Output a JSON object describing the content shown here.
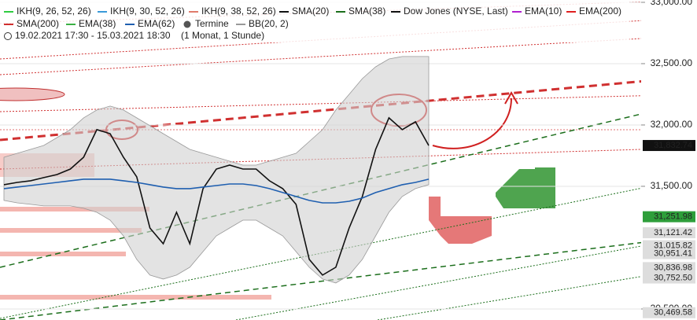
{
  "chart_data": {
    "type": "line",
    "period": "19.02.2021 17:30 - 15.03.2021 18:30",
    "interval": "(1 Monat, 1 Stunde)",
    "ylim": [
      30410,
      33019
    ],
    "yticks": [
      {
        "value": 33000,
        "label": "33,000.00"
      },
      {
        "value": 32500,
        "label": "32,500.00"
      },
      {
        "value": 32000,
        "label": "32,000.00"
      },
      {
        "value": 31500,
        "label": "31,500.00"
      },
      {
        "value": 30500,
        "label": "30,500.00"
      }
    ],
    "markers": [
      {
        "value": 31832.74,
        "label": "31,832.74",
        "color": "#111111"
      },
      {
        "value": 31251.98,
        "label": "31,251.98",
        "color": "#2e9e3a"
      },
      {
        "value": 31121.42,
        "label": "31,121.42",
        "color": "#dddddd"
      },
      {
        "value": 31015.82,
        "label": "31,015.82",
        "color": "#dddddd"
      },
      {
        "value": 30951.41,
        "label": "30,951.41",
        "color": "#dddddd"
      },
      {
        "value": 30836.98,
        "label": "30,836.98",
        "color": "#dddddd"
      },
      {
        "value": 30752.5,
        "label": "30,752.50",
        "color": "#dddddd"
      },
      {
        "value": 30469.58,
        "label": "30,469.58",
        "color": "#dddddd"
      }
    ],
    "series": [
      {
        "name": "IKH(9, 26, 52, 26)",
        "color": "#2ecc40"
      },
      {
        "name": "IKH(9, 30, 52, 26)",
        "color": "#3a9ad9"
      },
      {
        "name": "IKH(9, 38, 52, 26)",
        "color": "#e07a6a"
      },
      {
        "name": "SMA(20)",
        "color": "#111111"
      },
      {
        "name": "SMA(38)",
        "color": "#1b6e1b"
      },
      {
        "name": "Dow Jones (NYSE, Last)",
        "color": "#111111",
        "values": [
          31513,
          31532,
          31545,
          31571,
          31596,
          31641,
          31737,
          31962,
          31929,
          31737,
          31577,
          31160,
          31032,
          31288,
          31032,
          31481,
          31641,
          31673,
          31641,
          31641,
          31545,
          31481,
          31353,
          30904,
          30776,
          30840,
          31160,
          31417,
          31801,
          32058,
          31962,
          32026,
          31832.74
        ]
      },
      {
        "name": "EMA(10)",
        "color": "#b020d0"
      },
      {
        "name": "EMA(200)",
        "color": "#e02020"
      },
      {
        "name": "SMA(200)",
        "color": "#d03030"
      },
      {
        "name": "EMA(38)",
        "color": "#3cb043"
      },
      {
        "name": "EMA(62)",
        "color": "#1f5fb0",
        "values": [
          31481,
          31494,
          31506,
          31519,
          31532,
          31545,
          31558,
          31558,
          31558,
          31545,
          31532,
          31513,
          31494,
          31481,
          31481,
          31494,
          31506,
          31519,
          31519,
          31506,
          31481,
          31449,
          31417,
          31385,
          31365,
          31365,
          31378,
          31404,
          31449,
          31481,
          31513,
          31532,
          31558
        ]
      },
      {
        "name": "Termine"
      },
      {
        "name": "BB(20, 2)",
        "color": "#999999",
        "upper": [
          31737,
          31769,
          31801,
          31833,
          31897,
          31962,
          32058,
          32122,
          32154,
          32122,
          32058,
          31994,
          31929,
          31865,
          31801,
          31769,
          31737,
          31705,
          31673,
          31673,
          31705,
          31737,
          31769,
          31865,
          31962,
          32122,
          32250,
          32378,
          32474,
          32538,
          32558,
          32558,
          32558
        ],
        "lower": [
          31385,
          31365,
          31353,
          31340,
          31340,
          31340,
          31321,
          31288,
          31224,
          31096,
          30904,
          30776,
          30744,
          30776,
          30840,
          30968,
          31096,
          31160,
          31224,
          31224,
          31160,
          31096,
          30968,
          30840,
          30744,
          30712,
          30776,
          30904,
          31096,
          31288,
          31417,
          31481,
          31513
        ]
      }
    ]
  }
}
